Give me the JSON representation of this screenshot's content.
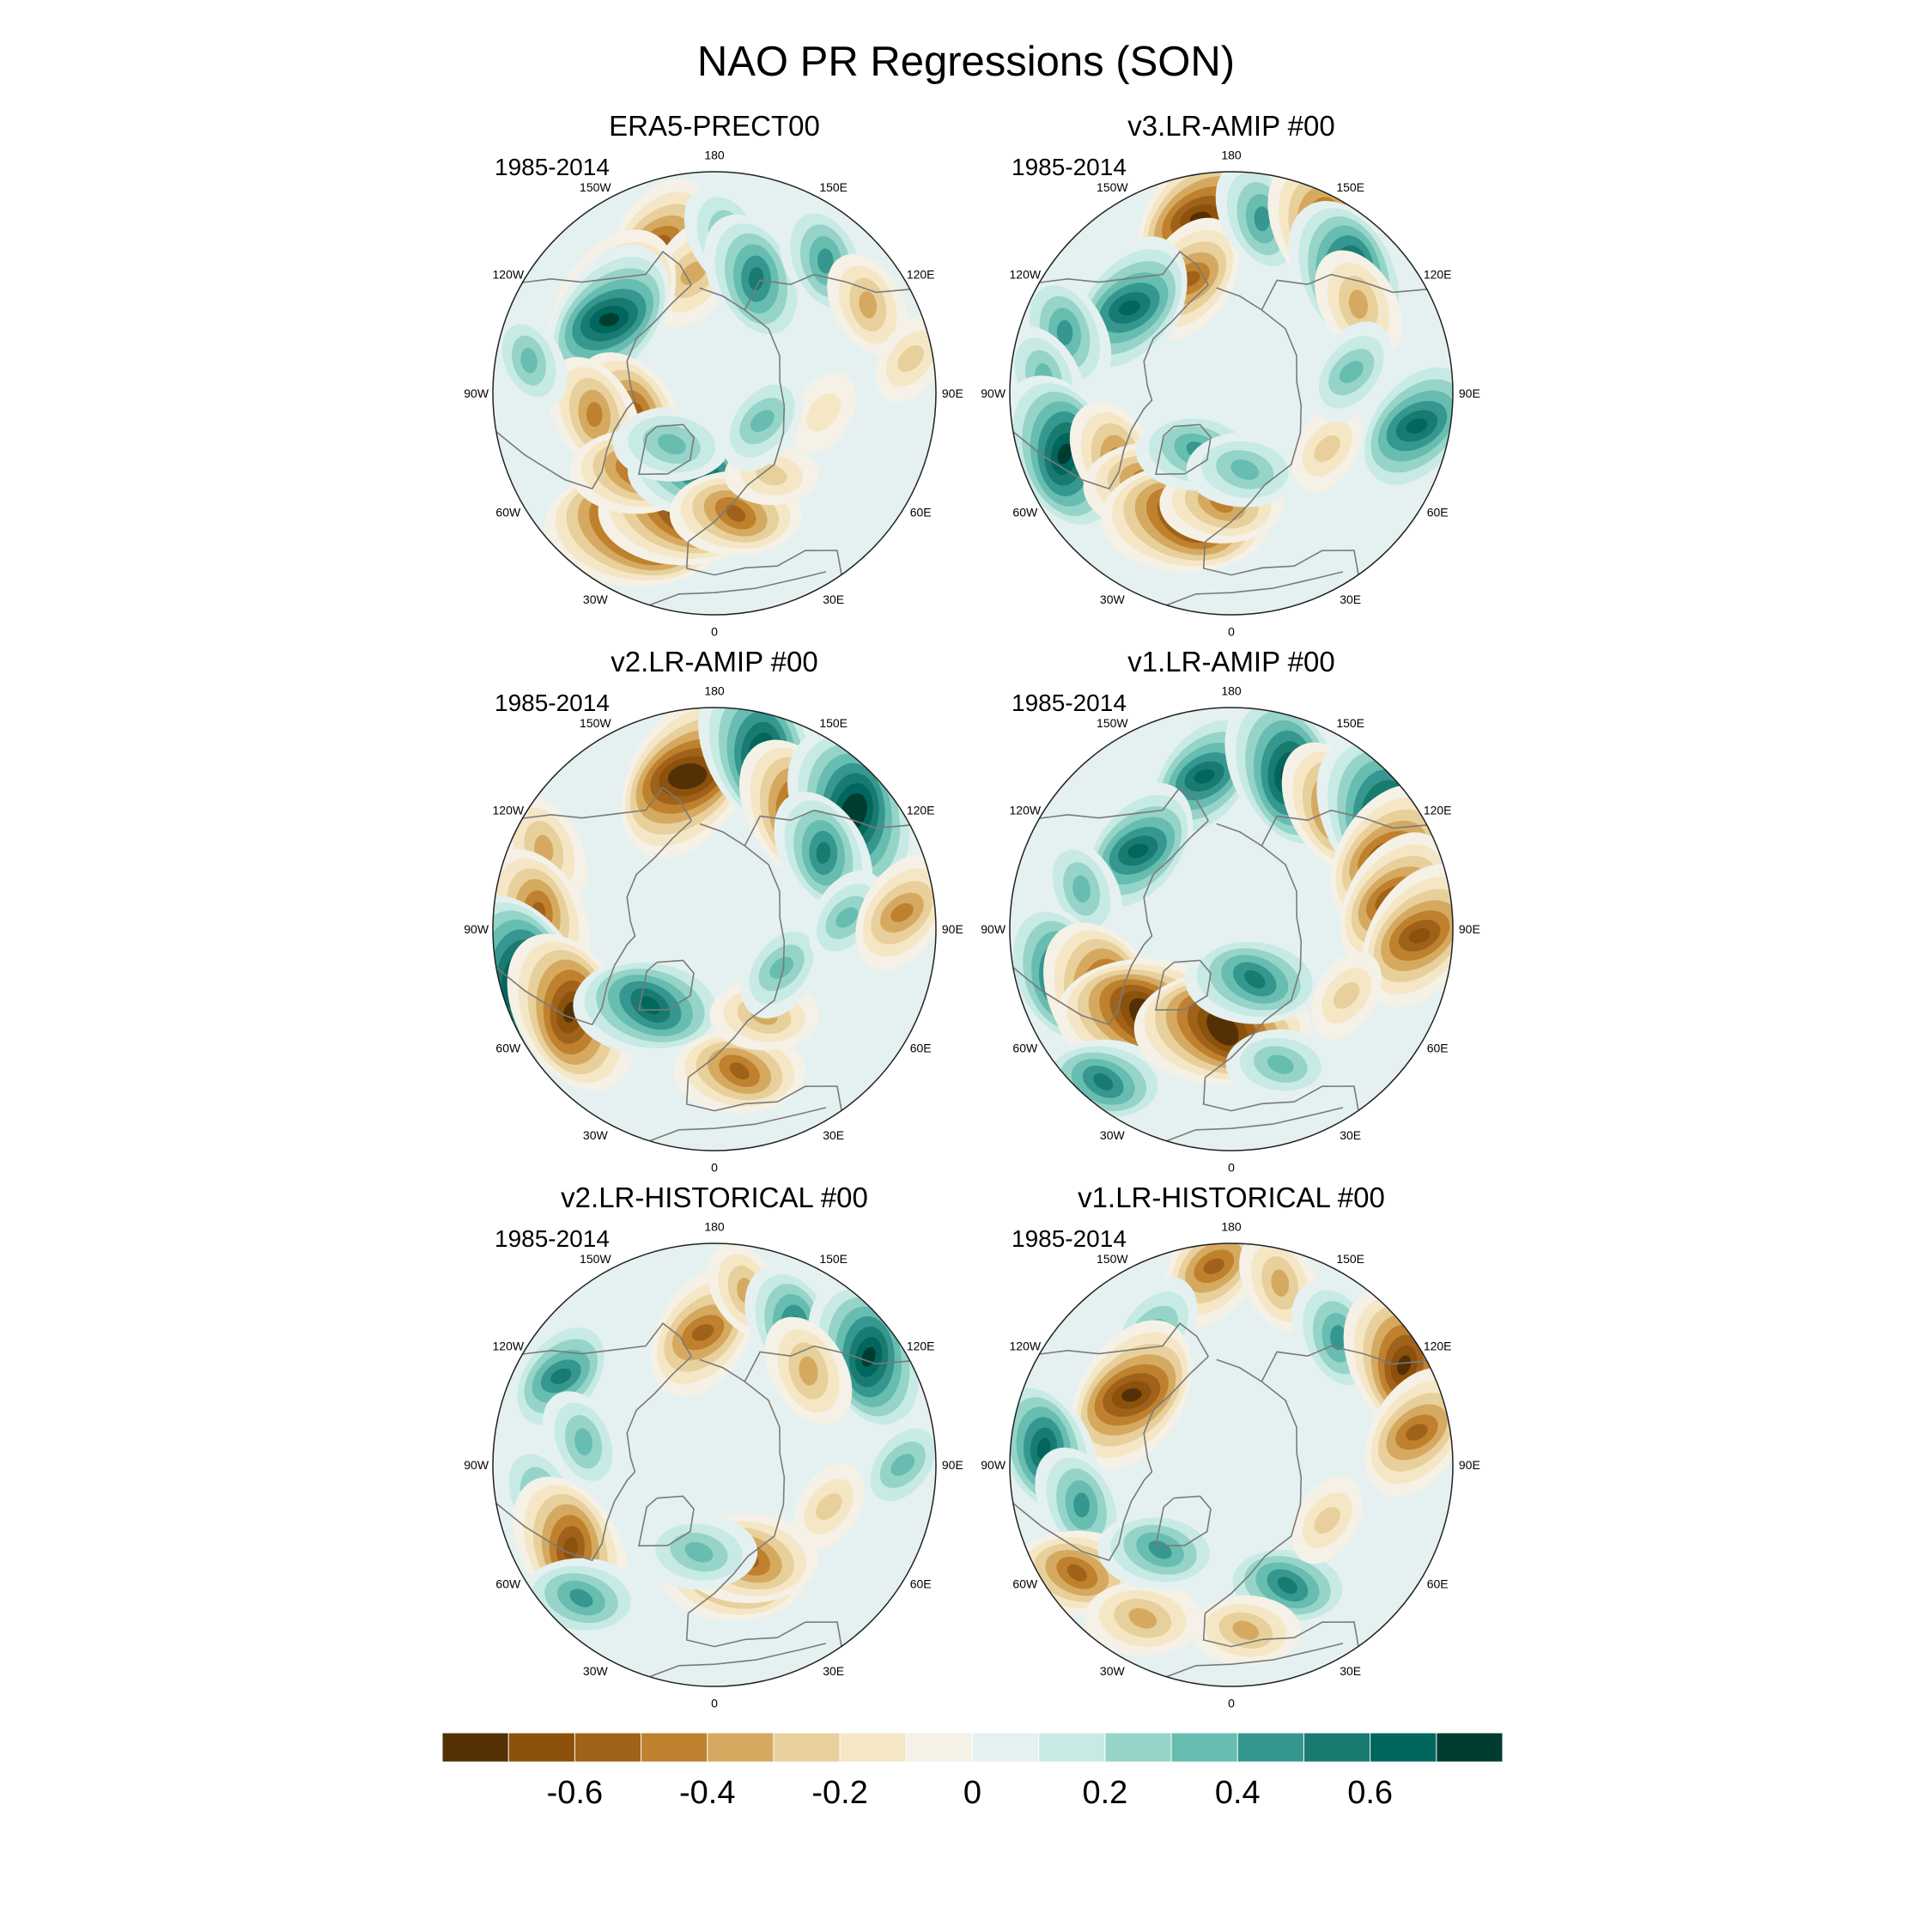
{
  "figure": {
    "title": "NAO PR Regressions (SON)"
  },
  "colors": {
    "ocean_outline": "#222222",
    "coast": "#7a7a7a",
    "background": "#ffffff"
  },
  "panels": [
    {
      "title": "ERA5-PRECT00",
      "period": "1985-2014",
      "blobs": [
        {
          "lon": -160,
          "r": 0.72,
          "v": -0.5
        },
        {
          "lon": -170,
          "r": 0.55,
          "v": -0.35
        },
        {
          "lon": 175,
          "r": 0.7,
          "v": 0.35
        },
        {
          "lon": 160,
          "r": 0.55,
          "v": 0.5
        },
        {
          "lon": 140,
          "r": 0.78,
          "v": 0.4
        },
        {
          "lon": -130,
          "r": 0.6,
          "v": -0.7
        },
        {
          "lon": -125,
          "r": 0.58,
          "v": 0.65
        },
        {
          "lon": 120,
          "r": 0.8,
          "v": -0.3
        },
        {
          "lon": -70,
          "r": 0.4,
          "v": -0.6
        },
        {
          "lon": -80,
          "r": 0.55,
          "v": -0.4
        },
        {
          "lon": -30,
          "r": 0.7,
          "v": -0.8
        },
        {
          "lon": -15,
          "r": 0.55,
          "v": -0.7
        },
        {
          "lon": -45,
          "r": 0.5,
          "v": -0.45
        },
        {
          "lon": -10,
          "r": 0.35,
          "v": 0.55
        },
        {
          "lon": -40,
          "r": 0.3,
          "v": 0.35
        },
        {
          "lon": 10,
          "r": 0.55,
          "v": -0.45
        },
        {
          "lon": 35,
          "r": 0.45,
          "v": -0.2
        },
        {
          "lon": 80,
          "r": 0.5,
          "v": -0.15
        },
        {
          "lon": 60,
          "r": 0.25,
          "v": 0.3
        },
        {
          "lon": 100,
          "r": 0.9,
          "v": -0.2
        },
        {
          "lon": -100,
          "r": 0.85,
          "v": 0.25
        }
      ]
    },
    {
      "title": "v3.LR-AMIP  #00",
      "period": "1985-2014",
      "blobs": [
        {
          "lon": -170,
          "r": 0.8,
          "v": -0.7
        },
        {
          "lon": -160,
          "r": 0.55,
          "v": -0.45
        },
        {
          "lon": 170,
          "r": 0.8,
          "v": 0.4
        },
        {
          "lon": 150,
          "r": 0.85,
          "v": -0.6
        },
        {
          "lon": 135,
          "r": 0.75,
          "v": 0.65
        },
        {
          "lon": 125,
          "r": 0.7,
          "v": -0.35
        },
        {
          "lon": -130,
          "r": 0.6,
          "v": 0.6
        },
        {
          "lon": -110,
          "r": 0.8,
          "v": 0.4
        },
        {
          "lon": -95,
          "r": 0.85,
          "v": 0.3
        },
        {
          "lon": -70,
          "r": 0.8,
          "v": 0.7
        },
        {
          "lon": -60,
          "r": 0.6,
          "v": -0.4
        },
        {
          "lon": -40,
          "r": 0.55,
          "v": -0.5
        },
        {
          "lon": -20,
          "r": 0.6,
          "v": -0.7
        },
        {
          "lon": -5,
          "r": 0.5,
          "v": -0.4
        },
        {
          "lon": -30,
          "r": 0.3,
          "v": 0.4
        },
        {
          "lon": 10,
          "r": 0.35,
          "v": 0.35
        },
        {
          "lon": 80,
          "r": 0.85,
          "v": 0.6
        },
        {
          "lon": 60,
          "r": 0.5,
          "v": -0.2
        },
        {
          "lon": 100,
          "r": 0.55,
          "v": 0.3
        }
      ]
    },
    {
      "title": "v2.LR-AMIP  #00",
      "period": "1985-2014",
      "blobs": [
        {
          "lon": -170,
          "r": 0.7,
          "v": -0.75
        },
        {
          "lon": 165,
          "r": 0.82,
          "v": 0.7
        },
        {
          "lon": 145,
          "r": 0.65,
          "v": -0.6
        },
        {
          "lon": 130,
          "r": 0.82,
          "v": 0.75
        },
        {
          "lon": 125,
          "r": 0.6,
          "v": 0.45
        },
        {
          "lon": -115,
          "r": 0.85,
          "v": -0.35
        },
        {
          "lon": -95,
          "r": 0.8,
          "v": -0.5
        },
        {
          "lon": -75,
          "r": 0.9,
          "v": 0.8
        },
        {
          "lon": -60,
          "r": 0.75,
          "v": -0.7
        },
        {
          "lon": -40,
          "r": 0.45,
          "v": 0.6
        },
        {
          "lon": 10,
          "r": 0.65,
          "v": -0.45
        },
        {
          "lon": 30,
          "r": 0.45,
          "v": -0.3
        },
        {
          "lon": 60,
          "r": 0.35,
          "v": 0.3
        },
        {
          "lon": 95,
          "r": 0.6,
          "v": 0.25
        },
        {
          "lon": 95,
          "r": 0.85,
          "v": -0.4
        }
      ]
    },
    {
      "title": "v1.LR-AMIP  #00",
      "period": "1985-2014",
      "blobs": [
        {
          "lon": -170,
          "r": 0.7,
          "v": 0.55
        },
        {
          "lon": 160,
          "r": 0.75,
          "v": 0.7
        },
        {
          "lon": 140,
          "r": 0.72,
          "v": -0.5
        },
        {
          "lon": 125,
          "r": 0.85,
          "v": 0.8
        },
        {
          "lon": 115,
          "r": 0.78,
          "v": -0.6
        },
        {
          "lon": 100,
          "r": 0.75,
          "v": -0.55
        },
        {
          "lon": 88,
          "r": 0.85,
          "v": -0.6
        },
        {
          "lon": -130,
          "r": 0.55,
          "v": 0.55
        },
        {
          "lon": -105,
          "r": 0.7,
          "v": 0.3
        },
        {
          "lon": -75,
          "r": 0.8,
          "v": 0.6
        },
        {
          "lon": -60,
          "r": 0.65,
          "v": -0.7
        },
        {
          "lon": -45,
          "r": 0.55,
          "v": -0.75
        },
        {
          "lon": -40,
          "r": 0.9,
          "v": 0.45
        },
        {
          "lon": -5,
          "r": 0.45,
          "v": -0.75
        },
        {
          "lon": 25,
          "r": 0.25,
          "v": 0.5
        },
        {
          "lon": 20,
          "r": 0.65,
          "v": 0.3
        },
        {
          "lon": 60,
          "r": 0.6,
          "v": -0.2
        }
      ]
    },
    {
      "title": "v2.LR-HISTORICAL  #00",
      "period": "1985-2014",
      "blobs": [
        {
          "lon": -175,
          "r": 0.6,
          "v": -0.5
        },
        {
          "lon": 170,
          "r": 0.8,
          "v": -0.25
        },
        {
          "lon": 150,
          "r": 0.72,
          "v": 0.45
        },
        {
          "lon": 125,
          "r": 0.85,
          "v": 0.65
        },
        {
          "lon": 135,
          "r": 0.6,
          "v": -0.35
        },
        {
          "lon": -120,
          "r": 0.8,
          "v": 0.45
        },
        {
          "lon": -100,
          "r": 0.6,
          "v": 0.3
        },
        {
          "lon": -80,
          "r": 0.8,
          "v": 0.35
        },
        {
          "lon": -60,
          "r": 0.75,
          "v": -0.6
        },
        {
          "lon": -45,
          "r": 0.85,
          "v": 0.4
        },
        {
          "lon": 10,
          "r": 0.5,
          "v": -0.55
        },
        {
          "lon": 20,
          "r": 0.45,
          "v": -0.5
        },
        {
          "lon": -10,
          "r": 0.4,
          "v": 0.35
        },
        {
          "lon": 90,
          "r": 0.85,
          "v": 0.3
        },
        {
          "lon": 70,
          "r": 0.55,
          "v": -0.2
        }
      ]
    },
    {
      "title": "v1.LR-HISTORICAL  #00",
      "period": "1985-2014",
      "blobs": [
        {
          "lon": -175,
          "r": 0.9,
          "v": -0.45
        },
        {
          "lon": 165,
          "r": 0.85,
          "v": -0.3
        },
        {
          "lon": -150,
          "r": 0.7,
          "v": 0.35
        },
        {
          "lon": -125,
          "r": 0.55,
          "v": -0.65
        },
        {
          "lon": 140,
          "r": 0.75,
          "v": 0.4
        },
        {
          "lon": 120,
          "r": 0.9,
          "v": -0.65
        },
        {
          "lon": 100,
          "r": 0.85,
          "v": -0.5
        },
        {
          "lon": -95,
          "r": 0.85,
          "v": 0.55
        },
        {
          "lon": -75,
          "r": 0.7,
          "v": 0.4
        },
        {
          "lon": -55,
          "r": 0.85,
          "v": -0.45
        },
        {
          "lon": -30,
          "r": 0.8,
          "v": -0.35
        },
        {
          "lon": -40,
          "r": 0.5,
          "v": 0.4
        },
        {
          "lon": 25,
          "r": 0.6,
          "v": 0.45
        },
        {
          "lon": 5,
          "r": 0.75,
          "v": -0.3
        },
        {
          "lon": 60,
          "r": 0.5,
          "v": -0.2
        }
      ]
    }
  ],
  "lon_labels": [
    "180",
    "150E",
    "120E",
    "90E",
    "60E",
    "30E",
    "0",
    "30W",
    "60W",
    "90W",
    "120W",
    "150W"
  ],
  "lon_label_values": [
    180,
    150,
    120,
    90,
    60,
    30,
    0,
    -30,
    -60,
    -90,
    -120,
    -150
  ],
  "colorbar": {
    "colors": [
      "#543005",
      "#8c510a",
      "#a0621a",
      "#bf812d",
      "#d5aa60",
      "#e8d09c",
      "#f5e7c6",
      "#f5f1e6",
      "#e5f1f0",
      "#c7eae5",
      "#96d3c8",
      "#66bdb0",
      "#35978f",
      "#197a70",
      "#01665e",
      "#003c30"
    ],
    "levels": [
      -0.7,
      -0.6,
      -0.5,
      -0.4,
      -0.3,
      -0.2,
      -0.1,
      0,
      0.1,
      0.2,
      0.3,
      0.4,
      0.5,
      0.6,
      0.7
    ],
    "tick_labels": [
      "-0.6",
      "-0.4",
      "-0.2",
      "0",
      "0.2",
      "0.4",
      "0.6"
    ],
    "tick_values": [
      -0.6,
      -0.4,
      -0.2,
      0,
      0.2,
      0.4,
      0.6
    ]
  }
}
